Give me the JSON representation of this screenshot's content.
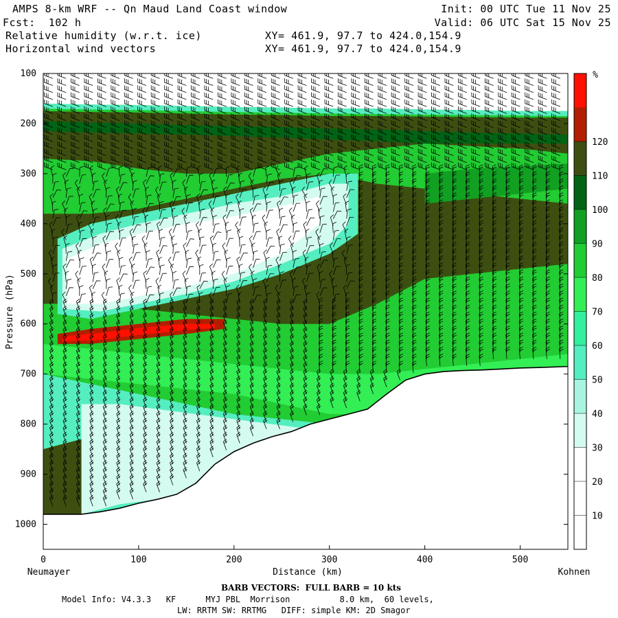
{
  "header": {
    "title": "AMPS 8-km WRF -- Qn Maud Land Coast window",
    "forecast": "Fcst:  102 h",
    "var1": "Relative humidity (w.r.t. ice)",
    "var2": "Horizontal wind vectors",
    "init": "Init: 00 UTC Tue 11 Nov 25",
    "valid": "Valid: 06 UTC Sat 15 Nov 25",
    "xy1": "XY= 461.9, 97.7 to 424.0,154.9",
    "xy2": "XY= 461.9, 97.7 to 424.0,154.9"
  },
  "footer": {
    "barb_note": "BARB VECTORS:  FULL BARB = 10 kts",
    "model_line1": "Model Info: V4.3.3   KF      MYJ PBL  Morrison          8.0 km,  60 levels,",
    "model_line2": "LW: RRTM SW: RRTMG   DIFF: simple KM: 2D Smagor"
  },
  "chart_data": {
    "type": "heatmap",
    "title": "Relative humidity (w.r.t. ice)",
    "xlabel": "Distance (km)",
    "ylabel": "Pressure (hPa)",
    "x_left_label": "Neumayer",
    "x_right_label": "Kohnen",
    "xlim": [
      0,
      550
    ],
    "ylim": [
      1050,
      100
    ],
    "x_ticks": [
      0,
      100,
      200,
      300,
      400,
      500
    ],
    "y_ticks": [
      100,
      200,
      300,
      400,
      500,
      600,
      700,
      800,
      900,
      1000
    ],
    "colorbar": {
      "unit": "%",
      "levels": [
        10,
        20,
        30,
        40,
        50,
        60,
        70,
        80,
        90,
        100,
        110,
        120
      ],
      "colors": [
        "#ffffff",
        "#ffffff",
        "#ffffff",
        "#d4fbf0",
        "#a7f5e0",
        "#55eec0",
        "#33f0a0",
        "#33ee55",
        "#22cc33",
        "#11a022",
        "#006414",
        "#3d4f10",
        "#b41e00",
        "#ff1000"
      ]
    },
    "terrain": {
      "x": [
        0,
        20,
        40,
        60,
        80,
        100,
        120,
        140,
        160,
        180,
        200,
        220,
        240,
        260,
        280,
        300,
        320,
        340,
        360,
        380,
        400,
        420,
        440,
        460,
        480,
        500,
        520,
        550
      ],
      "pressure": [
        980,
        980,
        980,
        975,
        968,
        958,
        950,
        940,
        918,
        880,
        855,
        838,
        825,
        815,
        800,
        790,
        780,
        770,
        740,
        712,
        700,
        695,
        693,
        692,
        690,
        688,
        687,
        685
      ]
    },
    "features": [
      {
        "name": "dry tongue",
        "rh_range": "< 30",
        "x_range": [
          15,
          330
        ],
        "p_range": [
          300,
          560
        ]
      },
      {
        "name": "supersaturated layer",
        "rh_range": "> 110",
        "x_range": [
          15,
          200
        ],
        "p_range": [
          580,
          640
        ]
      },
      {
        "name": "moist upper layer",
        "rh_range": "90-110",
        "x_range": [
          0,
          550
        ],
        "p_range": [
          180,
          270
        ]
      }
    ],
    "wind_barbs": "Horizontal wind vectors"
  }
}
